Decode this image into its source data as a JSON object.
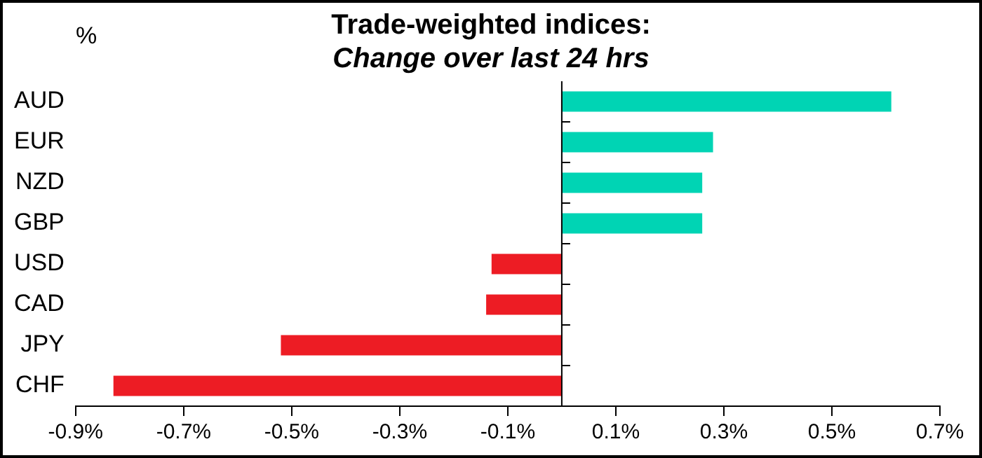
{
  "chart_data": {
    "type": "bar",
    "orientation": "horizontal",
    "title": "Trade-weighted indices:",
    "subtitle": "Change over last 24 hrs",
    "ylabel": "%",
    "categories": [
      "AUD",
      "EUR",
      "NZD",
      "GBP",
      "USD",
      "CAD",
      "JPY",
      "CHF"
    ],
    "values": [
      0.61,
      0.28,
      0.26,
      0.26,
      -0.13,
      -0.14,
      -0.52,
      -0.83
    ],
    "colors": [
      "#00d4b4",
      "#00d4b4",
      "#00d4b4",
      "#00d4b4",
      "#ed1c24",
      "#ed1c24",
      "#ed1c24",
      "#ed1c24"
    ],
    "xlim": [
      -0.9,
      0.7
    ],
    "xticks": [
      {
        "value": -0.9,
        "label": "-0.9%"
      },
      {
        "value": -0.7,
        "label": "-0.7%"
      },
      {
        "value": -0.5,
        "label": "-0.5%"
      },
      {
        "value": -0.3,
        "label": "-0.3%"
      },
      {
        "value": -0.1,
        "label": "-0.1%"
      },
      {
        "value": 0.1,
        "label": "0.1%"
      },
      {
        "value": 0.3,
        "label": "0.3%"
      },
      {
        "value": 0.5,
        "label": "0.5%"
      },
      {
        "value": 0.7,
        "label": "0.7%"
      }
    ],
    "grid": false,
    "legend": false
  }
}
